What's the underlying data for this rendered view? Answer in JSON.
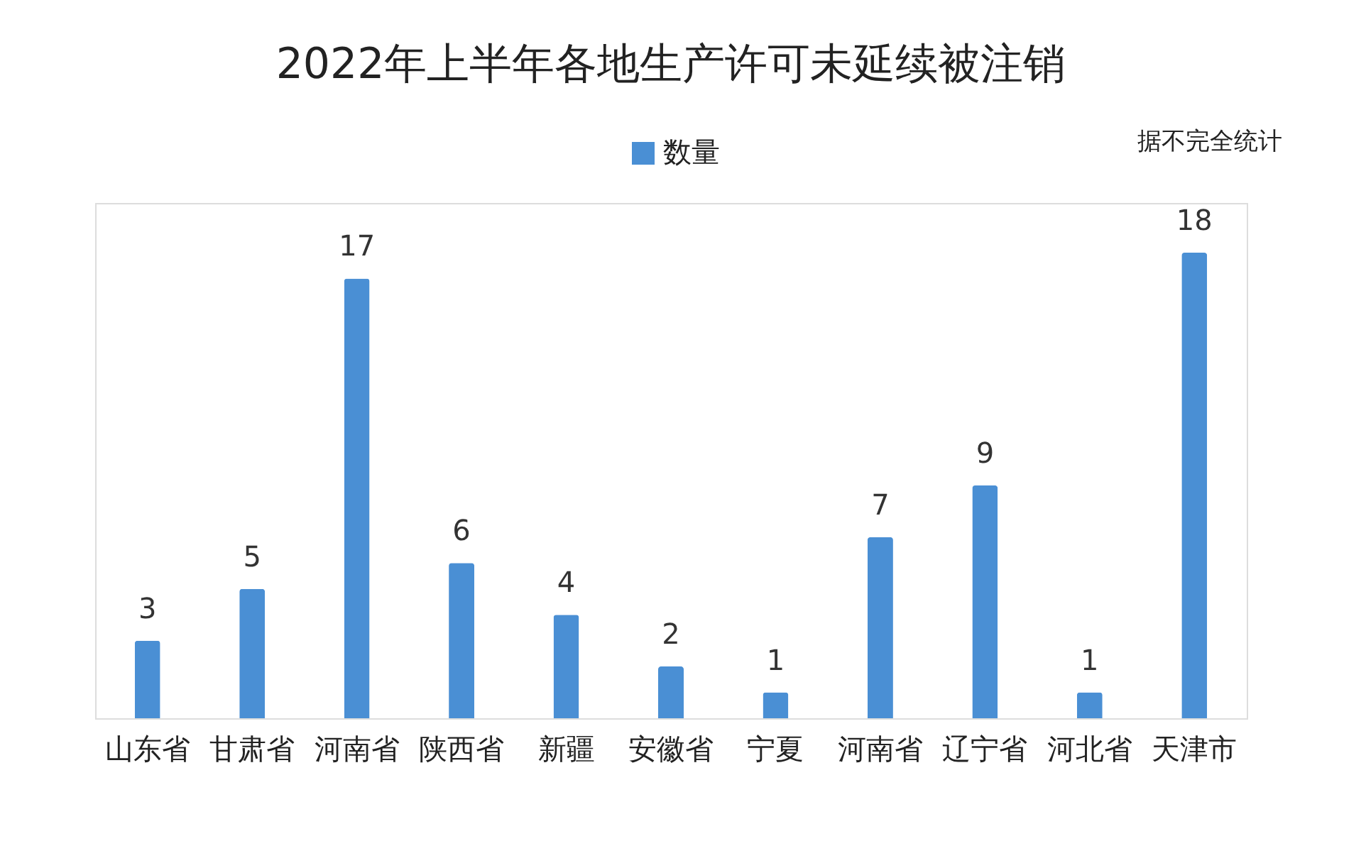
{
  "chart_data": {
    "type": "bar",
    "title": "2022年上半年各地生产许可未延续被注销",
    "categories": [
      "山东省",
      "甘肃省",
      "河南省",
      "陕西省",
      "新疆",
      "安徽省",
      "宁夏",
      "河南省",
      "辽宁省",
      "河北省",
      "天津市"
    ],
    "series": [
      {
        "name": "数量",
        "color": "#4a8fd4",
        "values": [
          3,
          5,
          17,
          6,
          4,
          2,
          1,
          7,
          9,
          1,
          18
        ]
      }
    ],
    "data_labels": true,
    "legend": "top",
    "tick_labels": "x",
    "annotations": [
      "据不完全统计"
    ]
  }
}
